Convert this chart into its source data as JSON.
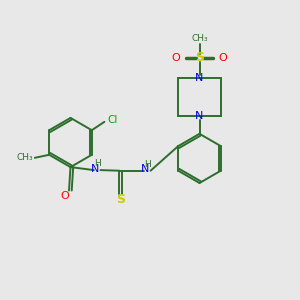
{
  "bg_color": "#e8e8e8",
  "bond_color": "#2d6e2d",
  "N_color": "#0000ee",
  "O_color": "#ff0000",
  "S_color": "#cccc00",
  "Cl_color": "#00aa00",
  "figsize": [
    3.0,
    3.0
  ],
  "dpi": 100,
  "xlim": [
    0,
    10
  ],
  "ylim": [
    0,
    10
  ]
}
